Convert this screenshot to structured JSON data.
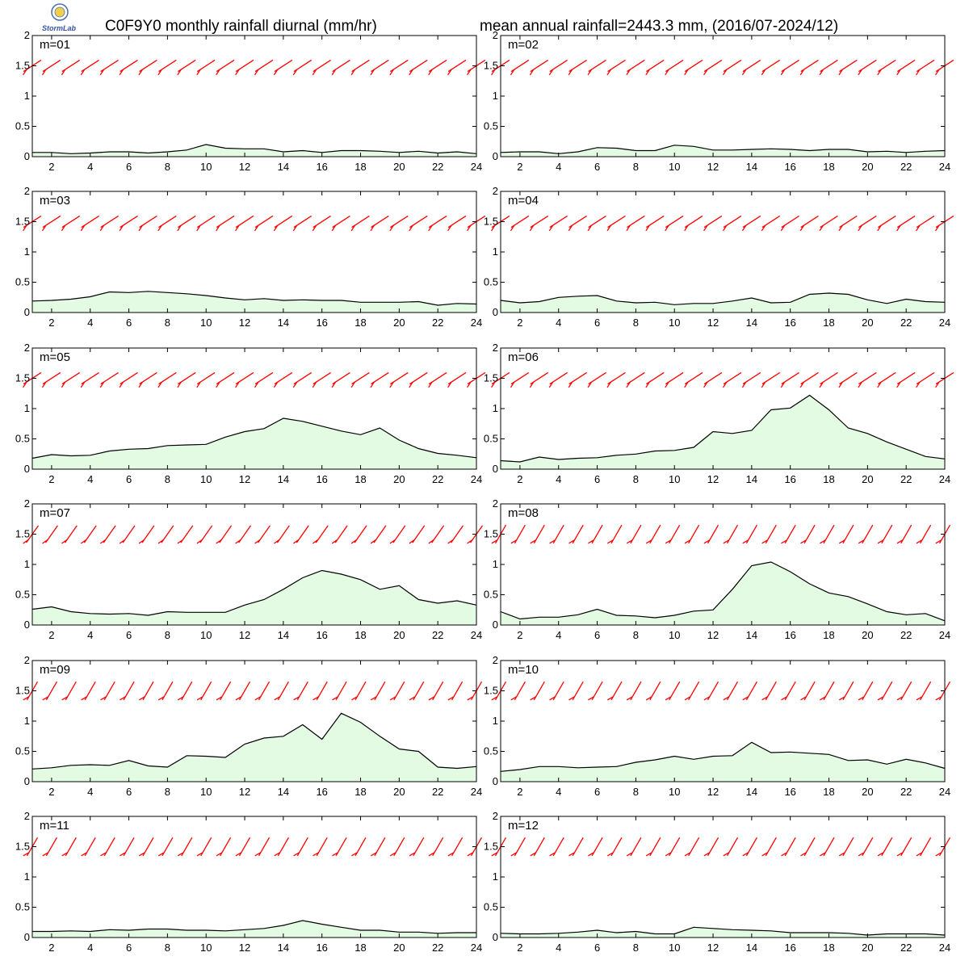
{
  "header": {
    "title_left": "C0F9Y0 monthly rainfall diurnal (mm/hr)",
    "title_right": "mean annual rainfall=2443.3 mm, (2016/07-2024/12)",
    "logo_text": "StormLab"
  },
  "chart_data": [
    {
      "type": "area",
      "label": "m=01",
      "x": [
        1,
        2,
        3,
        4,
        5,
        6,
        7,
        8,
        9,
        10,
        11,
        12,
        13,
        14,
        15,
        16,
        17,
        18,
        19,
        20,
        21,
        22,
        23,
        24
      ],
      "values": [
        0.07,
        0.07,
        0.05,
        0.06,
        0.08,
        0.08,
        0.06,
        0.08,
        0.11,
        0.2,
        0.14,
        0.13,
        0.13,
        0.08,
        0.1,
        0.07,
        0.1,
        0.1,
        0.09,
        0.07,
        0.09,
        0.06,
        0.08,
        0.05
      ],
      "ylim": [
        0,
        2
      ],
      "xlim": [
        1,
        24
      ],
      "xticks": [
        2,
        4,
        6,
        8,
        10,
        12,
        14,
        16,
        18,
        20,
        22,
        24
      ],
      "yticks": [
        0,
        0.5,
        1,
        1.5,
        2
      ]
    },
    {
      "type": "area",
      "label": "m=02",
      "x": [
        1,
        2,
        3,
        4,
        5,
        6,
        7,
        8,
        9,
        10,
        11,
        12,
        13,
        14,
        15,
        16,
        17,
        18,
        19,
        20,
        21,
        22,
        23,
        24
      ],
      "values": [
        0.07,
        0.08,
        0.08,
        0.05,
        0.08,
        0.15,
        0.14,
        0.1,
        0.1,
        0.19,
        0.17,
        0.11,
        0.11,
        0.12,
        0.13,
        0.12,
        0.1,
        0.12,
        0.12,
        0.08,
        0.09,
        0.07,
        0.09,
        0.1
      ],
      "ylim": [
        0,
        2
      ],
      "xlim": [
        1,
        24
      ],
      "xticks": [
        2,
        4,
        6,
        8,
        10,
        12,
        14,
        16,
        18,
        20,
        22,
        24
      ],
      "yticks": [
        0,
        0.5,
        1,
        1.5,
        2
      ]
    },
    {
      "type": "area",
      "label": "m=03",
      "x": [
        1,
        2,
        3,
        4,
        5,
        6,
        7,
        8,
        9,
        10,
        11,
        12,
        13,
        14,
        15,
        16,
        17,
        18,
        19,
        20,
        21,
        22,
        23,
        24
      ],
      "values": [
        0.19,
        0.2,
        0.22,
        0.26,
        0.34,
        0.33,
        0.35,
        0.33,
        0.31,
        0.28,
        0.24,
        0.21,
        0.23,
        0.2,
        0.21,
        0.2,
        0.2,
        0.17,
        0.17,
        0.17,
        0.18,
        0.12,
        0.15,
        0.14
      ],
      "ylim": [
        0,
        2
      ],
      "xlim": [
        1,
        24
      ],
      "xticks": [
        2,
        4,
        6,
        8,
        10,
        12,
        14,
        16,
        18,
        20,
        22,
        24
      ],
      "yticks": [
        0,
        0.5,
        1,
        1.5,
        2
      ]
    },
    {
      "type": "area",
      "label": "m=04",
      "x": [
        1,
        2,
        3,
        4,
        5,
        6,
        7,
        8,
        9,
        10,
        11,
        12,
        13,
        14,
        15,
        16,
        17,
        18,
        19,
        20,
        21,
        22,
        23,
        24
      ],
      "values": [
        0.2,
        0.16,
        0.18,
        0.25,
        0.27,
        0.28,
        0.19,
        0.16,
        0.17,
        0.13,
        0.15,
        0.15,
        0.19,
        0.24,
        0.16,
        0.17,
        0.3,
        0.32,
        0.3,
        0.21,
        0.15,
        0.22,
        0.18,
        0.17
      ],
      "ylim": [
        0,
        2
      ],
      "xlim": [
        1,
        24
      ],
      "xticks": [
        2,
        4,
        6,
        8,
        10,
        12,
        14,
        16,
        18,
        20,
        22,
        24
      ],
      "yticks": [
        0,
        0.5,
        1,
        1.5,
        2
      ]
    },
    {
      "type": "area",
      "label": "m=05",
      "x": [
        1,
        2,
        3,
        4,
        5,
        6,
        7,
        8,
        9,
        10,
        11,
        12,
        13,
        14,
        15,
        16,
        17,
        18,
        19,
        20,
        21,
        22,
        23,
        24
      ],
      "values": [
        0.18,
        0.24,
        0.22,
        0.23,
        0.3,
        0.33,
        0.34,
        0.39,
        0.4,
        0.41,
        0.53,
        0.62,
        0.67,
        0.84,
        0.79,
        0.71,
        0.63,
        0.57,
        0.68,
        0.48,
        0.34,
        0.26,
        0.23,
        0.19
      ],
      "ylim": [
        0,
        2
      ],
      "xlim": [
        1,
        24
      ],
      "xticks": [
        2,
        4,
        6,
        8,
        10,
        12,
        14,
        16,
        18,
        20,
        22,
        24
      ],
      "yticks": [
        0,
        0.5,
        1,
        1.5,
        2
      ]
    },
    {
      "type": "area",
      "label": "m=06",
      "x": [
        1,
        2,
        3,
        4,
        5,
        6,
        7,
        8,
        9,
        10,
        11,
        12,
        13,
        14,
        15,
        16,
        17,
        18,
        19,
        20,
        21,
        22,
        23,
        24
      ],
      "values": [
        0.14,
        0.12,
        0.2,
        0.16,
        0.18,
        0.19,
        0.23,
        0.25,
        0.3,
        0.31,
        0.36,
        0.62,
        0.59,
        0.64,
        0.98,
        1.01,
        1.22,
        0.98,
        0.68,
        0.59,
        0.45,
        0.33,
        0.21,
        0.17
      ],
      "ylim": [
        0,
        2
      ],
      "xlim": [
        1,
        24
      ],
      "xticks": [
        2,
        4,
        6,
        8,
        10,
        12,
        14,
        16,
        18,
        20,
        22,
        24
      ],
      "yticks": [
        0,
        0.5,
        1,
        1.5,
        2
      ]
    },
    {
      "type": "area",
      "label": "m=07",
      "x": [
        1,
        2,
        3,
        4,
        5,
        6,
        7,
        8,
        9,
        10,
        11,
        12,
        13,
        14,
        15,
        16,
        17,
        18,
        19,
        20,
        21,
        22,
        23,
        24
      ],
      "values": [
        0.26,
        0.3,
        0.22,
        0.19,
        0.18,
        0.19,
        0.16,
        0.22,
        0.21,
        0.21,
        0.21,
        0.33,
        0.42,
        0.59,
        0.78,
        0.9,
        0.84,
        0.75,
        0.59,
        0.65,
        0.42,
        0.36,
        0.4,
        0.33
      ],
      "ylim": [
        0,
        2
      ],
      "xlim": [
        1,
        24
      ],
      "xticks": [
        2,
        4,
        6,
        8,
        10,
        12,
        14,
        16,
        18,
        20,
        22,
        24
      ],
      "yticks": [
        0,
        0.5,
        1,
        1.5,
        2
      ]
    },
    {
      "type": "area",
      "label": "m=08",
      "x": [
        1,
        2,
        3,
        4,
        5,
        6,
        7,
        8,
        9,
        10,
        11,
        12,
        13,
        14,
        15,
        16,
        17,
        18,
        19,
        20,
        21,
        22,
        23,
        24
      ],
      "values": [
        0.22,
        0.1,
        0.13,
        0.13,
        0.17,
        0.26,
        0.16,
        0.15,
        0.12,
        0.16,
        0.23,
        0.25,
        0.59,
        0.98,
        1.04,
        0.88,
        0.68,
        0.53,
        0.47,
        0.35,
        0.22,
        0.17,
        0.19,
        0.07
      ],
      "ylim": [
        0,
        2
      ],
      "xlim": [
        1,
        24
      ],
      "xticks": [
        2,
        4,
        6,
        8,
        10,
        12,
        14,
        16,
        18,
        20,
        22,
        24
      ],
      "yticks": [
        0,
        0.5,
        1,
        1.5,
        2
      ]
    },
    {
      "type": "area",
      "label": "m=09",
      "x": [
        1,
        2,
        3,
        4,
        5,
        6,
        7,
        8,
        9,
        10,
        11,
        12,
        13,
        14,
        15,
        16,
        17,
        18,
        19,
        20,
        21,
        22,
        23,
        24
      ],
      "values": [
        0.21,
        0.23,
        0.27,
        0.28,
        0.27,
        0.35,
        0.26,
        0.24,
        0.43,
        0.42,
        0.4,
        0.62,
        0.72,
        0.75,
        0.94,
        0.7,
        1.13,
        0.98,
        0.75,
        0.54,
        0.5,
        0.24,
        0.22,
        0.25
      ],
      "ylim": [
        0,
        2
      ],
      "xlim": [
        1,
        24
      ],
      "xticks": [
        2,
        4,
        6,
        8,
        10,
        12,
        14,
        16,
        18,
        20,
        22,
        24
      ],
      "yticks": [
        0,
        0.5,
        1,
        1.5,
        2
      ]
    },
    {
      "type": "area",
      "label": "m=10",
      "x": [
        1,
        2,
        3,
        4,
        5,
        6,
        7,
        8,
        9,
        10,
        11,
        12,
        13,
        14,
        15,
        16,
        17,
        18,
        19,
        20,
        21,
        22,
        23,
        24
      ],
      "values": [
        0.17,
        0.2,
        0.25,
        0.25,
        0.23,
        0.24,
        0.25,
        0.32,
        0.36,
        0.42,
        0.37,
        0.42,
        0.43,
        0.65,
        0.48,
        0.49,
        0.47,
        0.45,
        0.35,
        0.36,
        0.29,
        0.37,
        0.31,
        0.22
      ],
      "ylim": [
        0,
        2
      ],
      "xlim": [
        1,
        24
      ],
      "xticks": [
        2,
        4,
        6,
        8,
        10,
        12,
        14,
        16,
        18,
        20,
        22,
        24
      ],
      "yticks": [
        0,
        0.5,
        1,
        1.5,
        2
      ]
    },
    {
      "type": "area",
      "label": "m=11",
      "x": [
        1,
        2,
        3,
        4,
        5,
        6,
        7,
        8,
        9,
        10,
        11,
        12,
        13,
        14,
        15,
        16,
        17,
        18,
        19,
        20,
        21,
        22,
        23,
        24
      ],
      "values": [
        0.1,
        0.1,
        0.11,
        0.1,
        0.13,
        0.12,
        0.14,
        0.14,
        0.12,
        0.12,
        0.11,
        0.13,
        0.15,
        0.2,
        0.28,
        0.22,
        0.17,
        0.12,
        0.12,
        0.09,
        0.09,
        0.07,
        0.08,
        0.08
      ],
      "ylim": [
        0,
        2
      ],
      "xlim": [
        1,
        24
      ],
      "xticks": [
        2,
        4,
        6,
        8,
        10,
        12,
        14,
        16,
        18,
        20,
        22,
        24
      ],
      "yticks": [
        0,
        0.5,
        1,
        1.5,
        2
      ]
    },
    {
      "type": "area",
      "label": "m=12",
      "x": [
        1,
        2,
        3,
        4,
        5,
        6,
        7,
        8,
        9,
        10,
        11,
        12,
        13,
        14,
        15,
        16,
        17,
        18,
        19,
        20,
        21,
        22,
        23,
        24
      ],
      "values": [
        0.07,
        0.06,
        0.06,
        0.07,
        0.09,
        0.12,
        0.08,
        0.1,
        0.06,
        0.06,
        0.17,
        0.15,
        0.13,
        0.12,
        0.11,
        0.08,
        0.08,
        0.08,
        0.07,
        0.04,
        0.06,
        0.06,
        0.06,
        0.04
      ],
      "ylim": [
        0,
        2
      ],
      "xlim": [
        1,
        24
      ],
      "xticks": [
        2,
        4,
        6,
        8,
        10,
        12,
        14,
        16,
        18,
        20,
        22,
        24
      ],
      "yticks": [
        0,
        0.5,
        1,
        1.5,
        2
      ]
    }
  ],
  "wind_barbs": {
    "color": "#ff0000",
    "y_level": 1.5,
    "shaft_angle_deg": [
      33,
      33,
      33,
      33,
      33,
      33,
      55,
      60,
      60,
      60,
      60,
      60
    ],
    "tilt": [
      [
        1,
        1,
        1,
        1,
        1,
        1,
        1,
        1,
        1,
        1,
        1,
        1,
        1,
        1,
        1,
        1,
        1,
        1,
        1,
        1,
        1,
        1,
        1,
        1
      ],
      [
        1,
        1,
        1,
        1,
        1,
        1,
        1,
        1,
        1,
        1,
        1,
        1,
        1,
        1,
        1,
        1,
        1,
        1,
        1,
        1,
        1,
        1,
        1,
        1
      ],
      [
        1,
        1,
        1,
        1,
        1,
        1,
        1,
        1,
        1,
        1,
        1,
        1,
        1,
        1,
        1,
        1,
        1,
        1,
        1,
        1,
        1,
        1,
        1,
        1
      ],
      [
        1,
        1,
        1,
        1,
        1,
        1,
        1,
        1,
        1,
        1,
        1,
        1,
        1,
        1,
        1,
        1,
        1,
        1,
        1,
        1,
        1,
        1,
        1,
        1
      ],
      [
        1,
        1,
        1,
        1,
        1,
        1,
        1,
        1,
        1,
        1,
        1,
        1,
        1,
        1,
        1,
        1,
        1,
        1,
        1,
        1,
        1,
        1,
        1,
        1
      ],
      [
        1,
        1,
        1,
        1,
        1,
        1,
        1,
        1,
        1,
        1,
        1,
        1,
        1,
        1,
        1,
        1,
        1,
        1,
        1,
        1,
        1,
        1,
        1,
        1
      ],
      [
        1,
        1,
        1,
        1,
        1,
        1,
        1,
        1,
        1,
        1,
        1,
        1,
        1,
        1,
        1,
        1,
        1,
        1,
        1,
        1,
        1,
        1,
        1,
        1
      ],
      [
        1,
        1,
        1,
        1,
        1,
        1,
        1,
        1,
        1,
        1,
        1,
        1,
        1,
        1,
        1,
        1,
        1,
        1,
        1,
        1,
        1,
        1,
        1,
        1
      ],
      [
        1,
        1,
        1,
        1,
        1,
        1,
        1,
        1,
        1,
        1,
        1,
        1,
        1,
        1,
        1,
        1,
        1,
        1,
        1,
        1,
        1,
        1,
        1,
        1
      ],
      [
        1,
        1,
        1,
        1,
        1,
        1,
        1,
        1,
        1,
        1,
        1,
        1,
        1,
        1,
        1,
        1,
        1,
        1,
        1,
        1,
        1,
        1,
        1,
        1
      ],
      [
        1,
        1,
        1,
        1,
        1,
        1,
        1,
        1,
        1,
        1,
        1,
        1,
        1,
        1,
        1,
        1,
        1,
        1,
        1,
        1,
        1,
        1,
        1,
        1
      ],
      [
        1,
        1,
        1,
        1,
        1,
        1,
        1,
        1,
        1,
        1,
        1,
        1,
        1,
        1,
        1,
        1,
        1,
        1,
        1,
        1,
        1,
        1,
        1,
        1
      ]
    ]
  },
  "colors": {
    "area_fill": "#e2fbe2",
    "line": "#000000",
    "barb": "#ff0000"
  }
}
